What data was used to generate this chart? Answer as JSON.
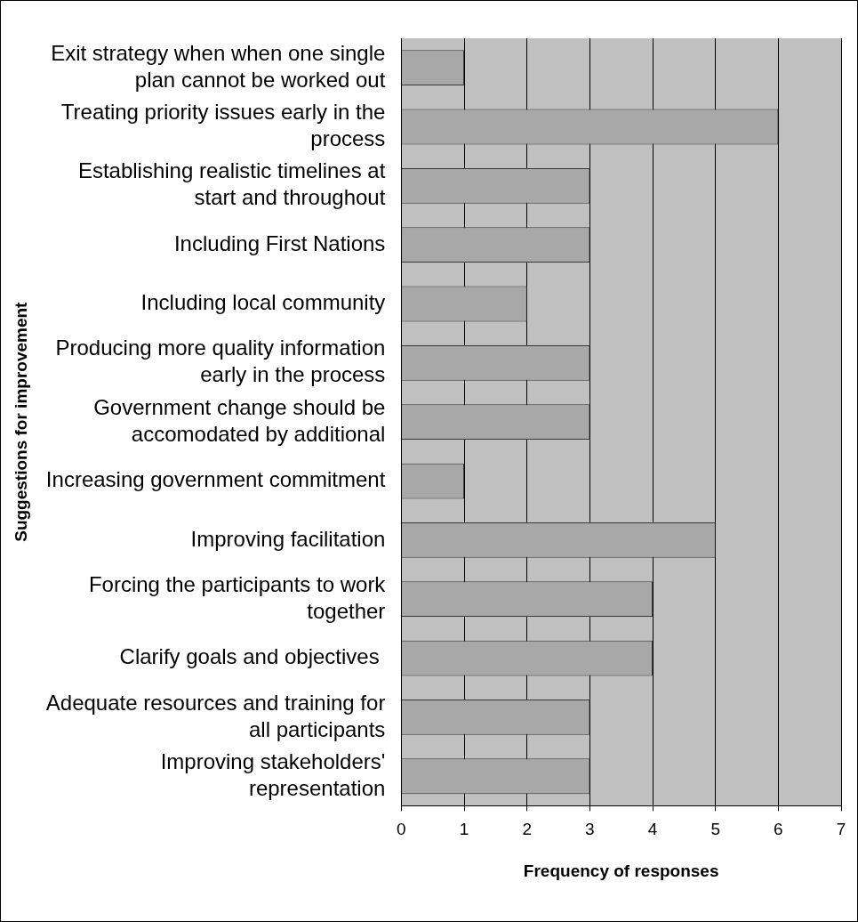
{
  "chart_data": {
    "type": "bar",
    "orientation": "horizontal",
    "xlabel": "Frequency of responses",
    "ylabel": "Suggestions for improvement",
    "categories": [
      "Exit strategy when when one single plan cannot be worked out",
      "Treating priority issues early in the process",
      "Establishing realistic timelines at start and throughout",
      "Including First Nations",
      "Including local community",
      "Producing more quality information early in the process",
      "Government change should be accomodated by additional",
      "Increasing government commitment",
      "Improving facilitation",
      "Forcing the participants to work together",
      "Clarify goals and objectives ",
      "Adequate resources and training for all participants",
      "Improving stakeholders' representation"
    ],
    "values": [
      1,
      6,
      3,
      3,
      2,
      3,
      3,
      1,
      5,
      4,
      4,
      3,
      3
    ],
    "color": "#a8a8a8",
    "xlim": [
      0,
      7
    ],
    "xticks": [
      0,
      1,
      2,
      3,
      4,
      5,
      6,
      7
    ],
    "grid": "x",
    "legend": false
  }
}
